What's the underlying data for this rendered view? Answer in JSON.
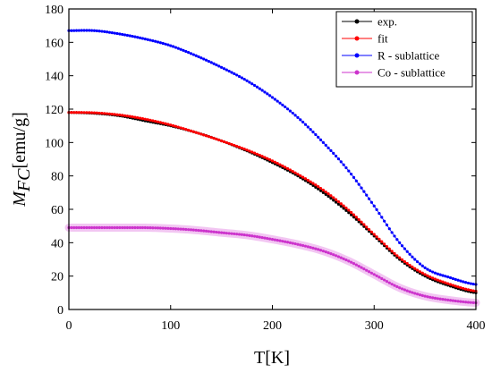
{
  "chart_data": {
    "type": "scatter",
    "xlabel": "T[K]",
    "ylabel_main": "M",
    "ylabel_sub": "FC",
    "ylabel_unit": "[emu/g]",
    "xlim": [
      0,
      400
    ],
    "ylim": [
      0,
      180
    ],
    "xticks": [
      "0",
      "100",
      "200",
      "300",
      "400"
    ],
    "yticks": [
      "0",
      "20",
      "40",
      "60",
      "80",
      "100",
      "120",
      "140",
      "160",
      "180"
    ],
    "grid": false,
    "legend_position": "top-right",
    "series": [
      {
        "name": "exp.",
        "color": "#000000",
        "x": [
          0,
          25,
          50,
          75,
          100,
          125,
          150,
          175,
          200,
          225,
          250,
          275,
          300,
          325,
          350,
          375,
          400
        ],
        "y": [
          118,
          117.5,
          116,
          113,
          110,
          106,
          101,
          95,
          88,
          80,
          70,
          58,
          44,
          30,
          20,
          14,
          10
        ]
      },
      {
        "name": "fit",
        "color": "#ff0000",
        "x": [
          0,
          25,
          50,
          75,
          100,
          125,
          150,
          175,
          200,
          225,
          250,
          275,
          300,
          325,
          350,
          375,
          400
        ],
        "y": [
          118,
          117.8,
          116.5,
          114,
          110.5,
          106,
          101,
          95.5,
          89,
          81,
          71.5,
          59.5,
          45,
          31,
          21,
          15,
          11
        ]
      },
      {
        "name": "R - sublattice",
        "color": "#0000ff",
        "x": [
          0,
          25,
          50,
          75,
          100,
          125,
          150,
          175,
          200,
          225,
          250,
          275,
          300,
          325,
          350,
          375,
          400
        ],
        "y": [
          167,
          167,
          165,
          162,
          158,
          152,
          145,
          137,
          127,
          115,
          100,
          83,
          62,
          40,
          25,
          19,
          15
        ]
      },
      {
        "name": "Co - sublattice",
        "color": "#cc33cc",
        "x": [
          0,
          25,
          50,
          75,
          100,
          125,
          150,
          175,
          200,
          225,
          250,
          275,
          300,
          325,
          350,
          375,
          400
        ],
        "y": [
          49,
          49,
          49,
          49,
          48.5,
          47.5,
          46,
          44.5,
          42,
          39,
          35,
          29,
          21,
          13,
          8,
          5.5,
          4
        ]
      }
    ]
  }
}
